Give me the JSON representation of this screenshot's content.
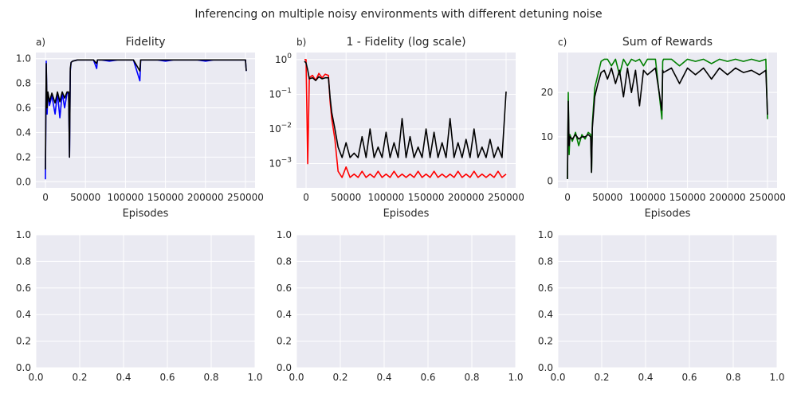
{
  "figure": {
    "suptitle": "Inferencing on multiple noisy environments with different detuning noise",
    "background": "#ffffff",
    "axes_background": "#eaeaf2",
    "grid_color": "#ffffff"
  },
  "chart_data": [
    {
      "type": "line",
      "panel_letter": "a)",
      "title": "Fidelity",
      "xlabel": "Episodes",
      "ylabel": "",
      "xlim": [
        -12000,
        262000
      ],
      "ylim": [
        -0.05,
        1.05
      ],
      "yscale": "linear",
      "xticks": [
        0,
        50000,
        100000,
        150000,
        200000,
        250000
      ],
      "xtick_labels": [
        "0",
        "50000",
        "100000",
        "150000",
        "200000",
        "250000"
      ],
      "yticks": [
        0.0,
        0.2,
        0.4,
        0.6,
        0.8,
        1.0
      ],
      "ytick_labels": [
        "0.0",
        "0.2",
        "0.4",
        "0.6",
        "0.8",
        "1.0"
      ],
      "grid": true,
      "series": [
        {
          "color": "#0000ff",
          "x": [
            0,
            1000,
            2000,
            3000,
            5000,
            8000,
            12000,
            15000,
            18000,
            21000,
            24000,
            27000,
            29000,
            30000,
            31000,
            32000,
            34000,
            40000,
            50000,
            60000,
            64000,
            65000,
            70000,
            80000,
            90000,
            100000,
            110000,
            118000,
            119000,
            120000,
            130000,
            140000,
            150000,
            160000,
            170000,
            180000,
            190000,
            200000,
            210000,
            220000,
            230000,
            240000,
            250000,
            251000
          ],
          "y": [
            0.02,
            0.98,
            0.55,
            0.72,
            0.62,
            0.7,
            0.55,
            0.72,
            0.52,
            0.72,
            0.6,
            0.72,
            0.72,
            0.2,
            0.9,
            0.97,
            0.98,
            0.99,
            0.99,
            0.99,
            0.92,
            0.99,
            0.99,
            0.98,
            0.99,
            0.99,
            0.99,
            0.82,
            0.99,
            0.99,
            0.99,
            0.99,
            0.98,
            0.99,
            0.99,
            0.99,
            0.99,
            0.98,
            0.99,
            0.99,
            0.99,
            0.99,
            0.99,
            0.9
          ]
        },
        {
          "color": "#000000",
          "x": [
            0,
            1000,
            2000,
            3000,
            5000,
            8000,
            12000,
            15000,
            18000,
            21000,
            24000,
            27000,
            29000,
            30000,
            31000,
            32000,
            34000,
            40000,
            50000,
            60000,
            64000,
            65000,
            70000,
            80000,
            90000,
            100000,
            110000,
            118000,
            119000,
            120000,
            130000,
            140000,
            150000,
            160000,
            170000,
            180000,
            190000,
            200000,
            210000,
            220000,
            230000,
            240000,
            250000,
            251000
          ],
          "y": [
            0.1,
            0.96,
            0.6,
            0.73,
            0.65,
            0.72,
            0.64,
            0.73,
            0.65,
            0.73,
            0.68,
            0.73,
            0.73,
            0.2,
            0.92,
            0.97,
            0.98,
            0.99,
            0.99,
            0.99,
            0.96,
            0.99,
            0.99,
            0.99,
            0.99,
            0.99,
            0.99,
            0.9,
            0.99,
            0.99,
            0.99,
            0.99,
            0.99,
            0.99,
            0.99,
            0.99,
            0.99,
            0.99,
            0.99,
            0.99,
            0.99,
            0.99,
            0.99,
            0.9
          ]
        }
      ]
    },
    {
      "type": "line",
      "panel_letter": "b)",
      "title": "1 - Fidelity (log scale)",
      "xlabel": "Episodes",
      "ylabel": "",
      "xlim": [
        -12000,
        262000
      ],
      "ylim": [
        0.0002,
        1.6
      ],
      "yscale": "log",
      "xticks": [
        0,
        50000,
        100000,
        150000,
        200000,
        250000
      ],
      "xtick_labels": [
        "0",
        "50000",
        "100000",
        "150000",
        "200000",
        "250000"
      ],
      "yticks": [
        0.001,
        0.01,
        0.1,
        1
      ],
      "ytick_bases": [
        "10",
        "10",
        "10",
        "10"
      ],
      "ytick_exponents": [
        "−3",
        "−2",
        "−1",
        "0"
      ],
      "grid": true,
      "series": [
        {
          "color": "#ff0000",
          "x": [
            -2000,
            0,
            2000,
            4000,
            8000,
            12000,
            16000,
            20000,
            24000,
            28000,
            30000,
            32000,
            36000,
            40000,
            45000,
            50000,
            55000,
            60000,
            65000,
            70000,
            75000,
            80000,
            85000,
            90000,
            95000,
            100000,
            105000,
            110000,
            115000,
            120000,
            125000,
            130000,
            135000,
            140000,
            145000,
            150000,
            155000,
            160000,
            165000,
            170000,
            175000,
            180000,
            185000,
            190000,
            195000,
            200000,
            205000,
            210000,
            215000,
            220000,
            225000,
            230000,
            235000,
            240000,
            245000,
            250000
          ],
          "y": [
            1.0,
            1.0,
            0.001,
            0.3,
            0.35,
            0.25,
            0.4,
            0.3,
            0.38,
            0.35,
            0.06,
            0.02,
            0.005,
            0.0006,
            0.0004,
            0.0008,
            0.0004,
            0.0005,
            0.0004,
            0.0006,
            0.0004,
            0.0005,
            0.0004,
            0.0006,
            0.0004,
            0.0005,
            0.0004,
            0.0006,
            0.0004,
            0.0005,
            0.0004,
            0.0005,
            0.0004,
            0.0006,
            0.0004,
            0.0005,
            0.0004,
            0.0006,
            0.0004,
            0.0005,
            0.0004,
            0.0005,
            0.0004,
            0.0006,
            0.0004,
            0.0005,
            0.0004,
            0.0006,
            0.0004,
            0.0005,
            0.0004,
            0.0005,
            0.0004,
            0.0006,
            0.0004,
            0.0005
          ]
        },
        {
          "color": "#000000",
          "x": [
            -2000,
            0,
            2000,
            4000,
            8000,
            12000,
            16000,
            20000,
            24000,
            28000,
            30000,
            32000,
            36000,
            40000,
            45000,
            50000,
            55000,
            60000,
            65000,
            70000,
            75000,
            80000,
            85000,
            90000,
            95000,
            100000,
            105000,
            110000,
            115000,
            120000,
            125000,
            130000,
            135000,
            140000,
            145000,
            150000,
            155000,
            160000,
            165000,
            170000,
            175000,
            180000,
            185000,
            190000,
            195000,
            200000,
            205000,
            210000,
            215000,
            220000,
            225000,
            230000,
            235000,
            240000,
            245000,
            250000
          ],
          "y": [
            0.9,
            0.8,
            0.5,
            0.28,
            0.3,
            0.25,
            0.32,
            0.28,
            0.3,
            0.3,
            0.08,
            0.03,
            0.01,
            0.003,
            0.0015,
            0.004,
            0.0015,
            0.002,
            0.0015,
            0.006,
            0.0015,
            0.01,
            0.0015,
            0.003,
            0.0015,
            0.008,
            0.0015,
            0.004,
            0.0015,
            0.02,
            0.0015,
            0.006,
            0.0015,
            0.003,
            0.0015,
            0.01,
            0.0015,
            0.008,
            0.0015,
            0.004,
            0.0015,
            0.02,
            0.0015,
            0.004,
            0.0015,
            0.005,
            0.0015,
            0.01,
            0.0015,
            0.003,
            0.0015,
            0.005,
            0.0015,
            0.003,
            0.0015,
            0.12
          ]
        }
      ]
    },
    {
      "type": "line",
      "panel_letter": "c)",
      "title": "Sum of Rewards",
      "xlabel": "Episodes",
      "ylabel": "",
      "xlim": [
        -12000,
        262000
      ],
      "ylim": [
        -1.5,
        29
      ],
      "yscale": "linear",
      "xticks": [
        0,
        50000,
        100000,
        150000,
        200000,
        250000
      ],
      "xtick_labels": [
        "0",
        "50000",
        "100000",
        "150000",
        "200000",
        "250000"
      ],
      "yticks": [
        0,
        10,
        20
      ],
      "ytick_labels": [
        "0",
        "10",
        "20"
      ],
      "grid": true,
      "series": [
        {
          "color": "#008000",
          "x": [
            0,
            1000,
            2000,
            3000,
            6000,
            10000,
            14000,
            18000,
            22000,
            26000,
            29000,
            30000,
            31000,
            34000,
            38000,
            42000,
            46000,
            50000,
            55000,
            60000,
            65000,
            70000,
            75000,
            80000,
            85000,
            90000,
            95000,
            100000,
            110000,
            118000,
            119000,
            120000,
            130000,
            140000,
            150000,
            160000,
            170000,
            180000,
            190000,
            200000,
            210000,
            220000,
            230000,
            240000,
            248000,
            250000
          ],
          "y": [
            0.5,
            20.0,
            6.0,
            10.5,
            9.0,
            11.0,
            8.0,
            10.5,
            9.5,
            11.0,
            10.5,
            2.0,
            13.0,
            21.0,
            24.0,
            27.0,
            27.5,
            27.5,
            26.0,
            27.5,
            24.0,
            27.5,
            26.0,
            27.5,
            27.0,
            27.5,
            26.0,
            27.5,
            27.5,
            14.0,
            27.0,
            27.5,
            27.5,
            26.0,
            27.5,
            27.0,
            27.5,
            26.5,
            27.5,
            27.0,
            27.5,
            27.0,
            27.5,
            27.0,
            27.5,
            14.0
          ]
        },
        {
          "color": "#000000",
          "x": [
            0,
            1000,
            2000,
            3000,
            6000,
            10000,
            14000,
            18000,
            22000,
            26000,
            29000,
            30000,
            31000,
            34000,
            38000,
            42000,
            46000,
            50000,
            55000,
            60000,
            65000,
            70000,
            75000,
            80000,
            85000,
            90000,
            95000,
            100000,
            110000,
            118000,
            119000,
            120000,
            130000,
            140000,
            150000,
            160000,
            170000,
            180000,
            190000,
            200000,
            210000,
            220000,
            230000,
            240000,
            248000,
            250000
          ],
          "y": [
            0.5,
            18.0,
            8.0,
            10.0,
            9.5,
            10.5,
            9.5,
            10.0,
            10.0,
            10.5,
            10.0,
            2.0,
            12.0,
            19.0,
            22.0,
            24.5,
            25.0,
            23.0,
            25.5,
            22.0,
            25.0,
            19.0,
            25.5,
            20.0,
            25.0,
            17.0,
            25.0,
            24.0,
            25.5,
            16.0,
            25.0,
            24.5,
            25.5,
            22.0,
            25.5,
            24.0,
            25.5,
            23.0,
            25.5,
            24.0,
            25.5,
            24.5,
            25.0,
            24.0,
            25.0,
            15.0
          ]
        }
      ]
    },
    {
      "type": "line",
      "panel_letter": "",
      "title": "",
      "xlabel": "",
      "ylabel": "",
      "xlim": [
        0,
        1
      ],
      "ylim": [
        0,
        1
      ],
      "yscale": "linear",
      "xticks": [
        0,
        0.2,
        0.4,
        0.6,
        0.8,
        1.0
      ],
      "xtick_labels": [
        "0.0",
        "0.2",
        "0.4",
        "0.6",
        "0.8",
        "1.0"
      ],
      "yticks": [
        0,
        0.2,
        0.4,
        0.6,
        0.8,
        1.0
      ],
      "ytick_labels": [
        "0.0",
        "0.2",
        "0.4",
        "0.6",
        "0.8",
        "1.0"
      ],
      "grid": true,
      "series": []
    },
    {
      "type": "line",
      "panel_letter": "",
      "title": "",
      "xlabel": "",
      "ylabel": "",
      "xlim": [
        0,
        1
      ],
      "ylim": [
        0,
        1
      ],
      "yscale": "linear",
      "xticks": [
        0,
        0.2,
        0.4,
        0.6,
        0.8,
        1.0
      ],
      "xtick_labels": [
        "0.0",
        "0.2",
        "0.4",
        "0.6",
        "0.8",
        "1.0"
      ],
      "yticks": [
        0,
        0.2,
        0.4,
        0.6,
        0.8,
        1.0
      ],
      "ytick_labels": [
        "0.0",
        "0.2",
        "0.4",
        "0.6",
        "0.8",
        "1.0"
      ],
      "grid": true,
      "series": []
    },
    {
      "type": "line",
      "panel_letter": "",
      "title": "",
      "xlabel": "",
      "ylabel": "",
      "xlim": [
        0,
        1
      ],
      "ylim": [
        0,
        1
      ],
      "yscale": "linear",
      "xticks": [
        0,
        0.2,
        0.4,
        0.6,
        0.8,
        1.0
      ],
      "xtick_labels": [
        "0.0",
        "0.2",
        "0.4",
        "0.6",
        "0.8",
        "1.0"
      ],
      "yticks": [
        0,
        0.2,
        0.4,
        0.6,
        0.8,
        1.0
      ],
      "ytick_labels": [
        "0.0",
        "0.2",
        "0.4",
        "0.6",
        "0.8",
        "1.0"
      ],
      "grid": true,
      "series": []
    }
  ]
}
